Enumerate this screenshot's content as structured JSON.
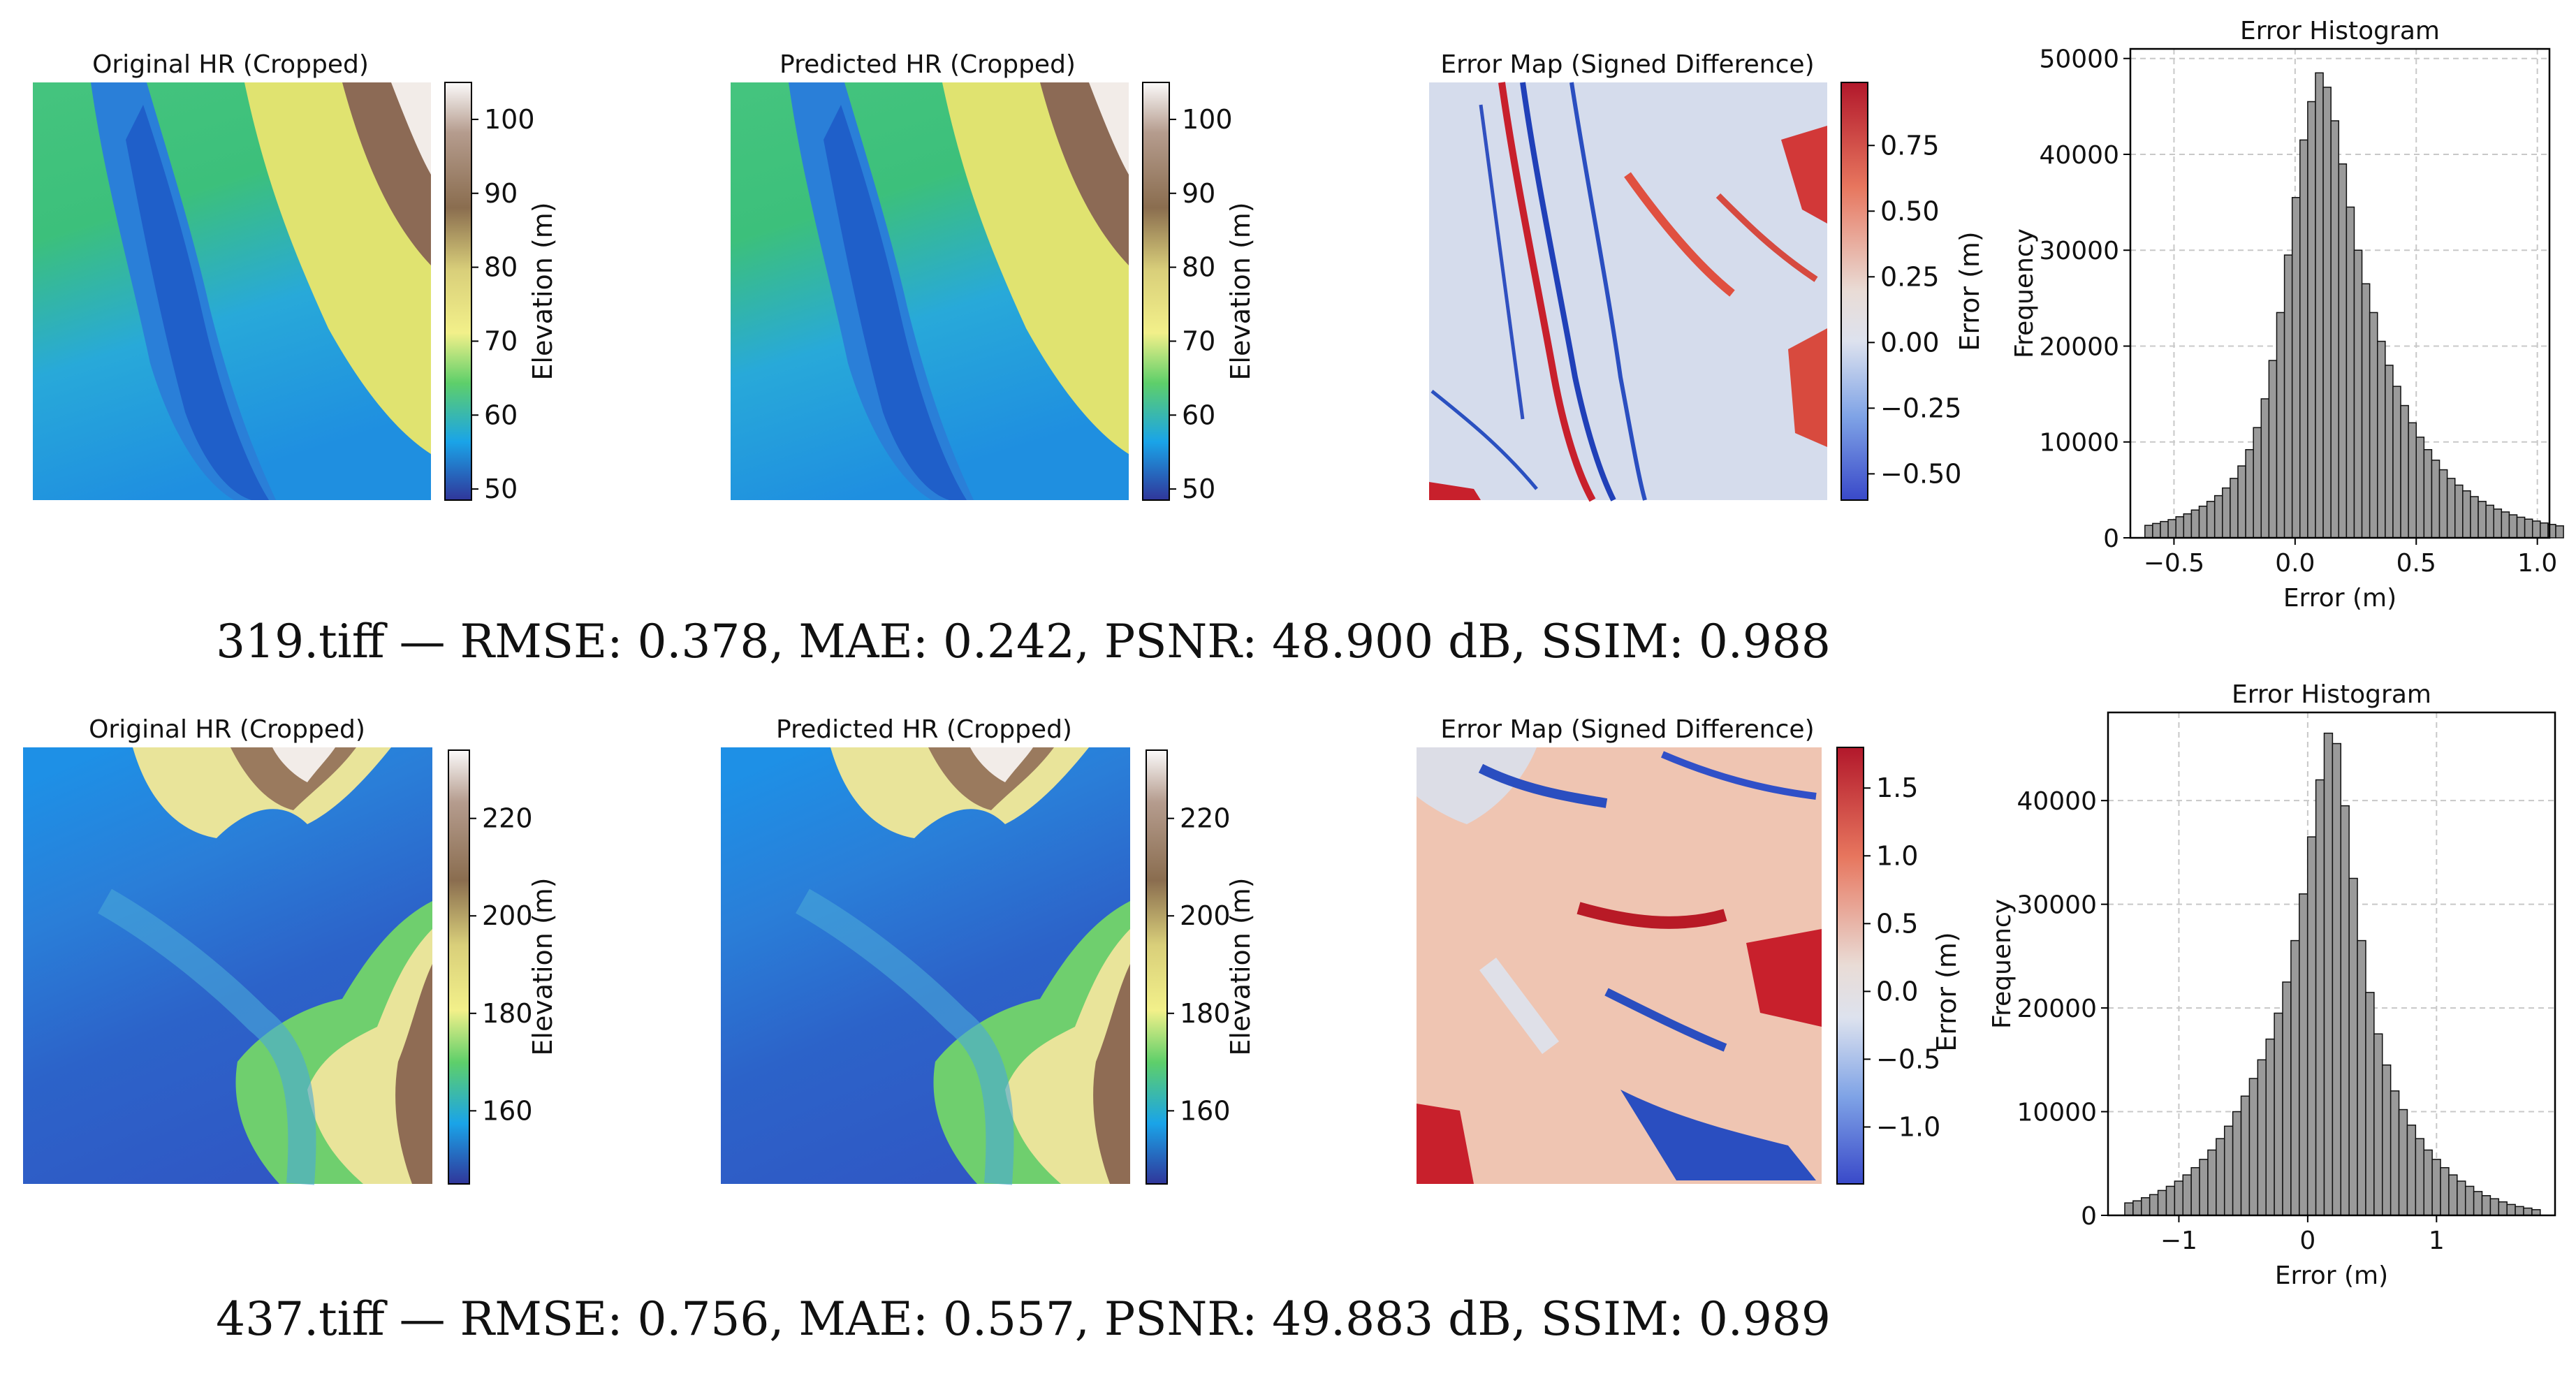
{
  "rows": [
    {
      "caption": "319.tiff — RMSE: 0.378, MAE: 0.242, PSNR: 48.900 dB, SSIM: 0.988",
      "panels": {
        "original_title": "Original HR (Cropped)",
        "predicted_title": "Predicted HR (Cropped)",
        "error_title": "Error Map (Signed Difference)"
      },
      "elevation_colorbar": {
        "label": "Elevation (m)",
        "range": [
          48.5,
          105
        ],
        "ticks": [
          50,
          60,
          70,
          80,
          90,
          100
        ]
      },
      "error_colorbar": {
        "label": "Error (m)",
        "range": [
          -0.6,
          0.99
        ],
        "ticks": [
          -0.5,
          -0.25,
          0.0,
          0.25,
          0.5,
          0.75
        ],
        "tick_labels": [
          "−0.50",
          "−0.25",
          "0.00",
          "0.25",
          "0.50",
          "0.75"
        ]
      }
    },
    {
      "caption": "437.tiff — RMSE: 0.756, MAE: 0.557, PSNR: 49.883 dB, SSIM: 0.989",
      "panels": {
        "original_title": "Original HR (Cropped)",
        "predicted_title": "Predicted HR (Cropped)",
        "error_title": "Error Map (Signed Difference)"
      },
      "elevation_colorbar": {
        "label": "Elevation (m)",
        "range": [
          145,
          234
        ],
        "ticks": [
          160,
          180,
          200,
          220
        ]
      },
      "error_colorbar": {
        "label": "Error (m)",
        "range": [
          -1.42,
          1.8
        ],
        "ticks": [
          -1.0,
          -0.5,
          0.0,
          0.5,
          1.0,
          1.5
        ],
        "tick_labels": [
          "−1.0",
          "−0.5",
          "0.0",
          "0.5",
          "1.0",
          "1.5"
        ]
      }
    }
  ],
  "chart_data": [
    {
      "type": "bar",
      "title": "Error Histogram",
      "xlabel": "Error (m)",
      "ylabel": "Frequency",
      "xlim": [
        -0.68,
        1.05
      ],
      "ylim": [
        0,
        51000
      ],
      "xticks": [
        -0.5,
        0.0,
        0.5,
        1.0
      ],
      "xtick_labels": [
        "−0.5",
        "0.0",
        "0.5",
        "1.0"
      ],
      "yticks": [
        0,
        10000,
        20000,
        30000,
        40000,
        50000
      ],
      "grid": true,
      "bin_start": -0.62,
      "bin_width": 0.032,
      "values": [
        1300,
        1500,
        1700,
        1900,
        2200,
        2500,
        2900,
        3300,
        3800,
        4400,
        5200,
        6200,
        7500,
        9200,
        11500,
        14500,
        18500,
        23500,
        29500,
        35500,
        41500,
        45500,
        48500,
        47000,
        43500,
        39000,
        34500,
        30000,
        26500,
        23500,
        20500,
        18000,
        15800,
        13800,
        12000,
        10500,
        9200,
        8100,
        7100,
        6200,
        5500,
        4900,
        4300,
        3800,
        3400,
        3000,
        2700,
        2400,
        2150,
        1950,
        1750,
        1550,
        1400,
        1250
      ]
    },
    {
      "type": "bar",
      "title": "Error Histogram",
      "xlabel": "Error (m)",
      "ylabel": "Frequency",
      "xlim": [
        -1.55,
        1.92
      ],
      "ylim": [
        0,
        48500
      ],
      "xticks": [
        -1,
        0,
        1
      ],
      "xtick_labels": [
        "−1",
        "0",
        "1"
      ],
      "yticks": [
        0,
        10000,
        20000,
        30000,
        40000
      ],
      "grid": true,
      "bin_start": -1.42,
      "bin_width": 0.0645,
      "values": [
        1200,
        1400,
        1700,
        2000,
        2400,
        2800,
        3300,
        3900,
        4600,
        5400,
        6300,
        7400,
        8600,
        10000,
        11500,
        13200,
        15000,
        17000,
        19500,
        22500,
        26500,
        31000,
        36500,
        42000,
        46500,
        45500,
        39500,
        32500,
        26500,
        21500,
        17500,
        14500,
        12000,
        10200,
        8700,
        7400,
        6300,
        5400,
        4600,
        3900,
        3300,
        2800,
        2300,
        1900,
        1600,
        1300,
        1050,
        850,
        700,
        550
      ]
    }
  ]
}
